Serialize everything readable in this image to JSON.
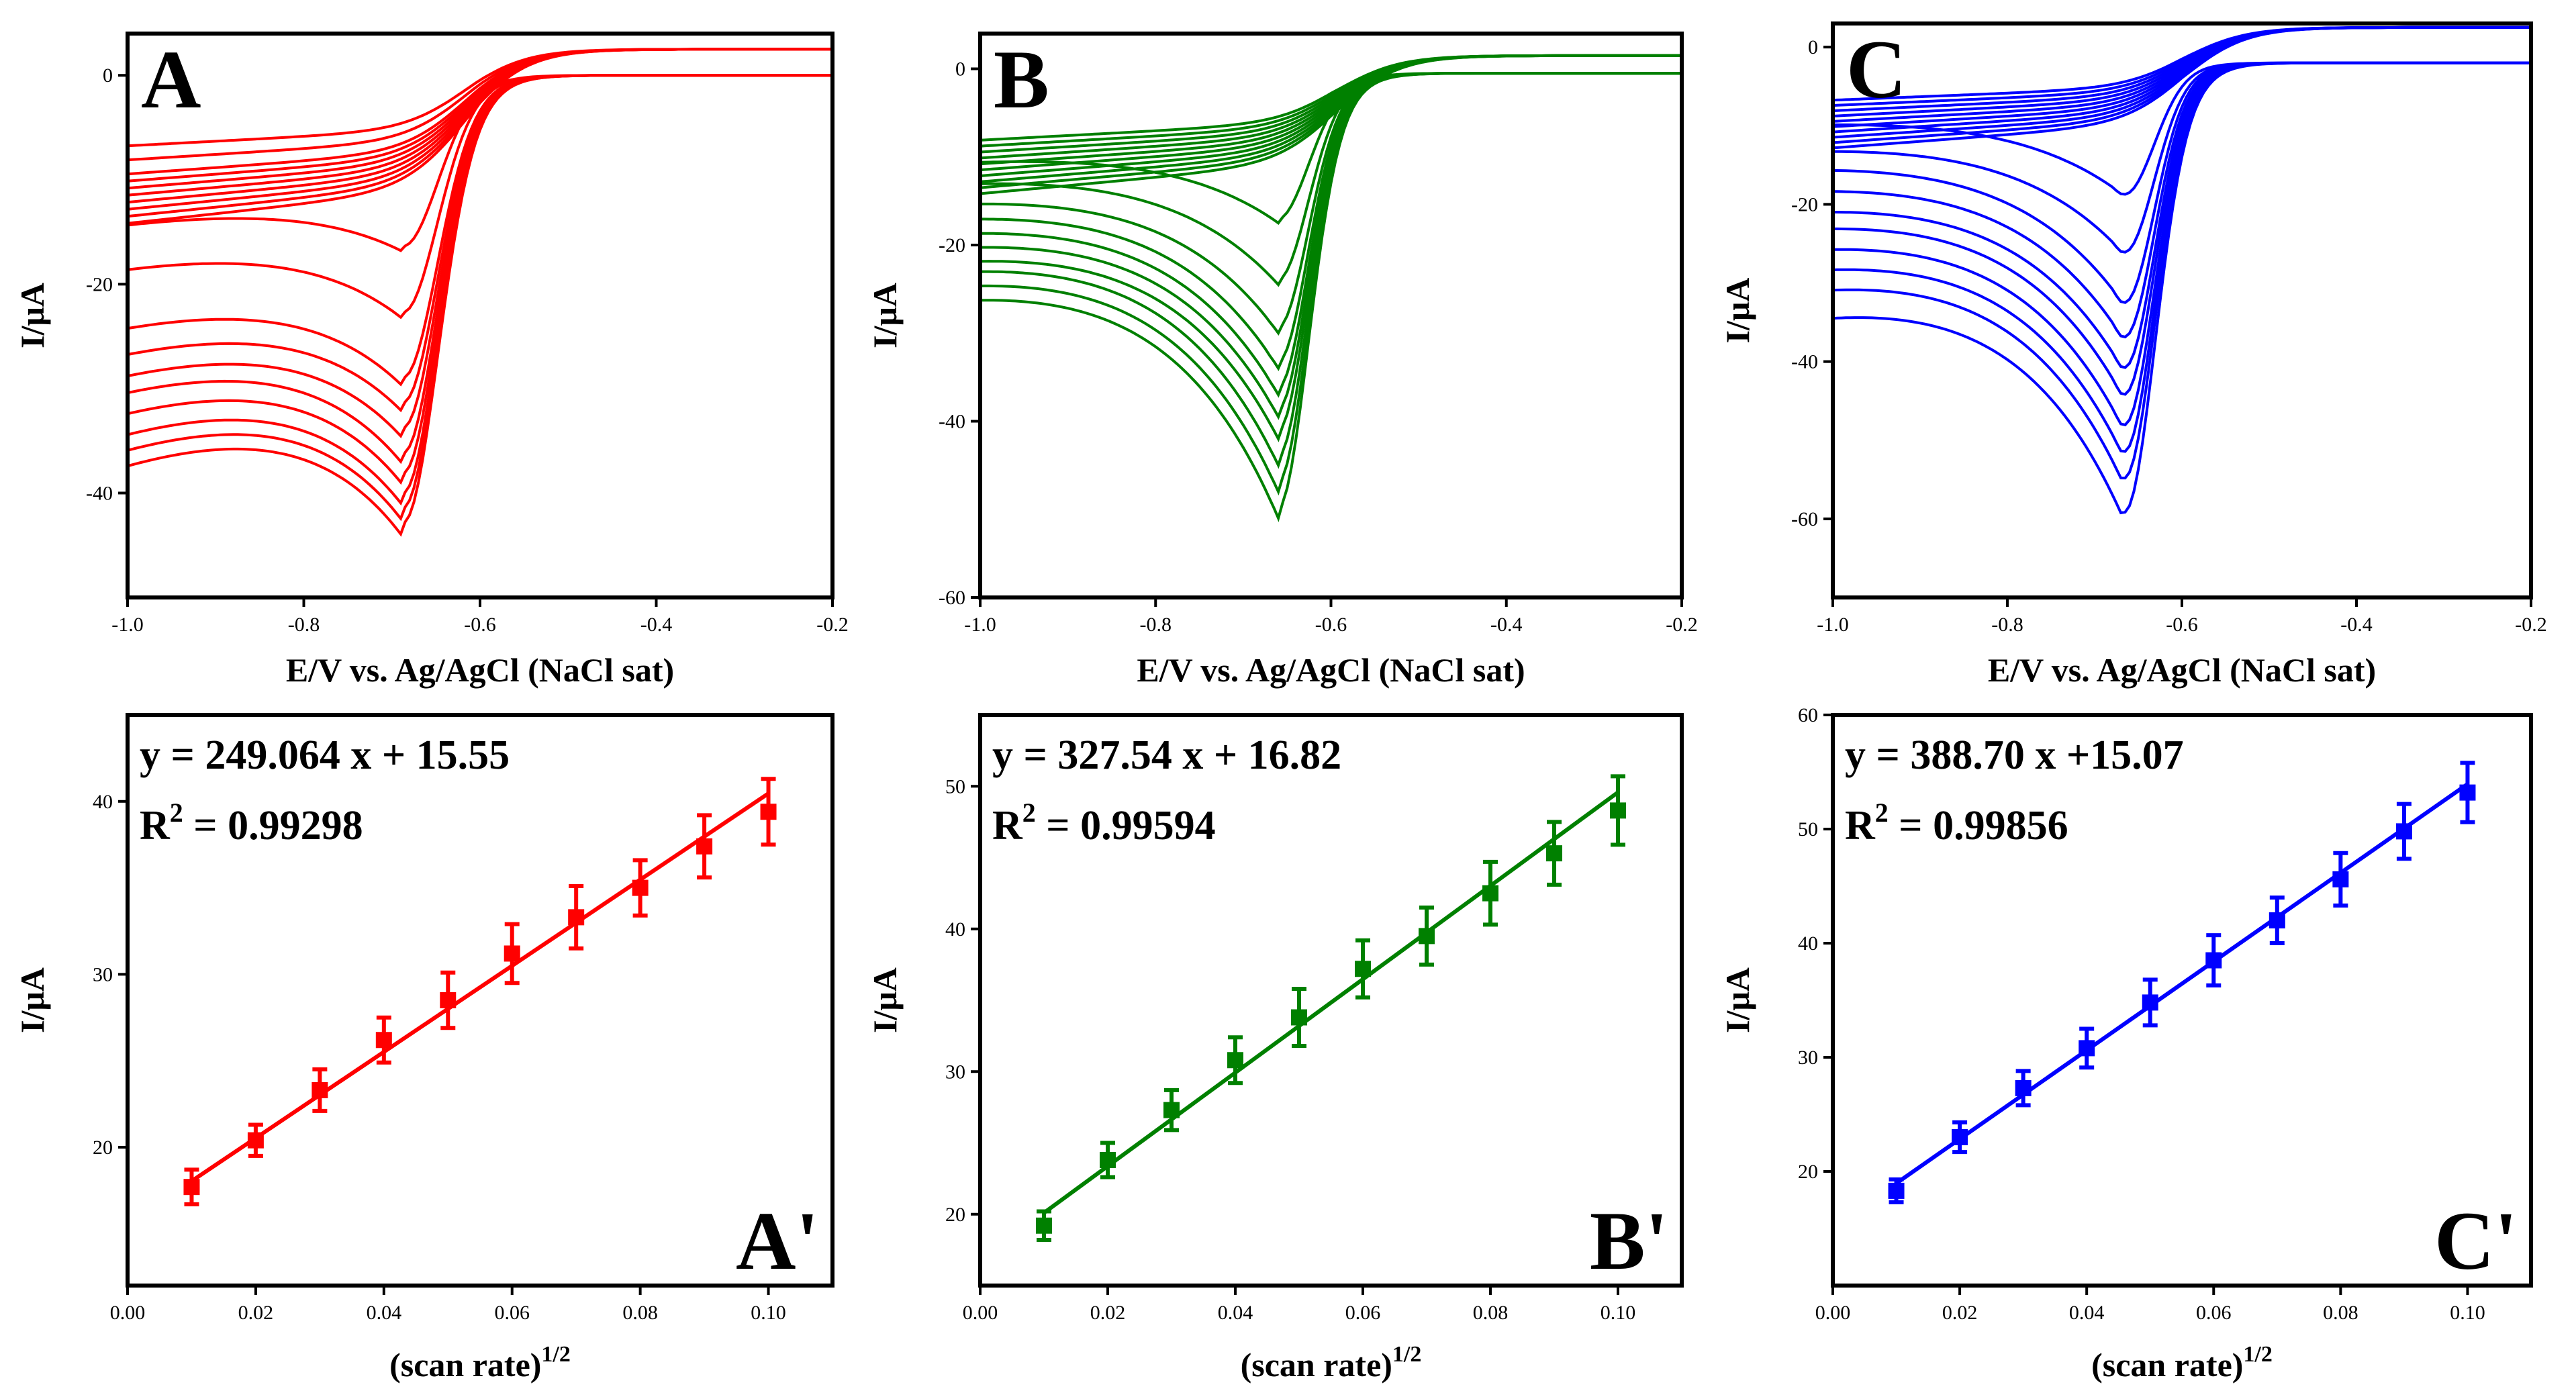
{
  "chart_data": [
    {
      "id": "A",
      "type": "line",
      "panel_label": "A",
      "color": "#ff0000",
      "xlabel": "E/V vs. Ag/AgCl (NaCl sat)",
      "ylabel": "I/μA",
      "xlim": [
        -1.0,
        -0.2
      ],
      "ylim": [
        -50,
        4
      ],
      "xticks": [
        -1.0,
        -0.8,
        -0.6,
        -0.4,
        -0.2
      ],
      "xtick_labels": [
        "-1.0",
        "-0.8",
        "-0.6",
        "-0.4",
        "-0.2"
      ],
      "yticks": [
        0,
        -20,
        -40
      ],
      "ytick_labels": [
        "0",
        "-20",
        "-40"
      ],
      "cv": {
        "n_curves": 10,
        "peak_potential": -0.685,
        "peak_currents": [
          -17,
          -23.5,
          -30,
          -32.5,
          -35,
          -37.5,
          -39.5,
          -41.5,
          -43,
          -44.5
        ],
        "start_currents": [
          -14,
          -18,
          -23.5,
          -26,
          -28,
          -29.5,
          -31.5,
          -33.5,
          -35,
          -36.5
        ],
        "return_currents": [
          -5,
          -6,
          -7,
          -7.5,
          -8,
          -8.5,
          -9,
          -9.5,
          -10,
          -10.5
        ],
        "end_forward": 0.0,
        "end_reverse": 2.5
      }
    },
    {
      "id": "B",
      "type": "line",
      "panel_label": "B",
      "color": "#008000",
      "xlabel": "E/V vs. Ag/AgCl (NaCl sat)",
      "ylabel": "I/μA",
      "xlim": [
        -1.0,
        -0.2
      ],
      "ylim": [
        -60,
        4
      ],
      "xticks": [
        -1.0,
        -0.8,
        -0.6,
        -0.4,
        -0.2
      ],
      "xtick_labels": [
        "-1.0",
        "-0.8",
        "-0.6",
        "-0.4",
        "-0.2"
      ],
      "yticks": [
        0,
        -20,
        -40,
        -60
      ],
      "ytick_labels": [
        "0",
        "-20",
        "-40",
        "-60"
      ],
      "cv": {
        "n_curves": 10,
        "peak_potential": -0.66,
        "peak_currents": [
          -17.5,
          -24.5,
          -30,
          -34,
          -37,
          -39.5,
          -42,
          -45,
          -48,
          -51
        ],
        "start_currents": [
          -10,
          -12,
          -14,
          -15.5,
          -17,
          -18.5,
          -20,
          -21,
          -22.5,
          -24
        ],
        "return_currents": [
          -6,
          -6.5,
          -7,
          -7.5,
          -8,
          -8.5,
          -9,
          -9.5,
          -10,
          -10.5
        ],
        "end_forward": -0.5,
        "end_reverse": 1.5
      }
    },
    {
      "id": "C",
      "type": "line",
      "panel_label": "C",
      "color": "#0000ff",
      "xlabel": "E/V vs. Ag/AgCl (NaCl sat)",
      "ylabel": "I/μA",
      "xlim": [
        -1.0,
        -0.2
      ],
      "ylim": [
        -70,
        3
      ],
      "xticks": [
        -1.0,
        -0.8,
        -0.6,
        -0.4,
        -0.2
      ],
      "xtick_labels": [
        "-1.0",
        "-0.8",
        "-0.6",
        "-0.4",
        "-0.2"
      ],
      "yticks": [
        0,
        -20,
        -40,
        -60
      ],
      "ytick_labels": [
        "0",
        "-20",
        "-40",
        "-60"
      ],
      "cv": {
        "n_curves": 10,
        "peak_potential": -0.665,
        "peak_currents": [
          -19,
          -26.5,
          -33,
          -37.5,
          -41.5,
          -45,
          -49,
          -52.5,
          -56,
          -60.5
        ],
        "start_currents": [
          -9,
          -12,
          -14,
          -16.5,
          -19,
          -21,
          -23.5,
          -26,
          -28.5,
          -32
        ],
        "return_currents": [
          -5,
          -5.5,
          -6,
          -6.5,
          -7,
          -7.5,
          -8,
          -8.5,
          -9,
          -9.5
        ],
        "end_forward": -2.0,
        "end_reverse": 2.5
      }
    },
    {
      "id": "A'",
      "type": "scatter",
      "panel_label": "A'",
      "color": "#ff0000",
      "xlabel": "(scan rate)",
      "xlabel_sup": "1/2",
      "ylabel": "I/μA",
      "xlim": [
        0.0,
        0.11
      ],
      "ylim": [
        12,
        45
      ],
      "xticks": [
        0.0,
        0.02,
        0.04,
        0.06,
        0.08,
        0.1
      ],
      "xtick_labels": [
        "0.00",
        "0.02",
        "0.04",
        "0.06",
        "0.08",
        "0.10"
      ],
      "yticks": [
        20,
        30,
        40
      ],
      "ytick_labels": [
        "20",
        "30",
        "40"
      ],
      "x": [
        0.01,
        0.02,
        0.03,
        0.04,
        0.05,
        0.06,
        0.07,
        0.08,
        0.09,
        0.1
      ],
      "y": [
        17.7,
        20.4,
        23.3,
        26.2,
        28.5,
        31.2,
        33.3,
        35.0,
        37.4,
        39.4
      ],
      "err": [
        1.0,
        0.9,
        1.2,
        1.3,
        1.6,
        1.7,
        1.8,
        1.6,
        1.8,
        1.9
      ],
      "fit": {
        "slope": 249.064,
        "intercept": 15.55
      },
      "equation": "y = 249.064 x + 15.55",
      "r2_prefix": "R",
      "r2_sup": "2",
      "r2_value": " = 0.99298"
    },
    {
      "id": "B'",
      "type": "scatter",
      "panel_label": "B'",
      "color": "#008000",
      "xlabel": "(scan rate)",
      "xlabel_sup": "1/2",
      "ylabel": "I/μA",
      "xlim": [
        0.0,
        0.11
      ],
      "ylim": [
        15,
        55
      ],
      "xticks": [
        0.0,
        0.02,
        0.04,
        0.06,
        0.08,
        0.1
      ],
      "xtick_labels": [
        "0.00",
        "0.02",
        "0.04",
        "0.06",
        "0.08",
        "0.10"
      ],
      "yticks": [
        20,
        30,
        40,
        50
      ],
      "ytick_labels": [
        "20",
        "30",
        "40",
        "50"
      ],
      "x": [
        0.01,
        0.02,
        0.03,
        0.04,
        0.05,
        0.06,
        0.07,
        0.08,
        0.09,
        0.1
      ],
      "y": [
        19.2,
        23.8,
        27.3,
        30.8,
        33.8,
        37.2,
        39.5,
        42.5,
        45.3,
        48.3
      ],
      "err": [
        1.0,
        1.2,
        1.4,
        1.6,
        2.0,
        2.0,
        2.0,
        2.2,
        2.2,
        2.4
      ],
      "fit": {
        "slope": 327.54,
        "intercept": 16.82
      },
      "equation": "y = 327.54 x + 16.82",
      "r2_prefix": "R",
      "r2_sup": "2",
      "r2_value": " = 0.99594"
    },
    {
      "id": "C'",
      "type": "scatter",
      "panel_label": "C'",
      "color": "#0000ff",
      "xlabel": "(scan rate)",
      "xlabel_sup": "1/2",
      "ylabel": "I/μA",
      "xlim": [
        0.0,
        0.11
      ],
      "ylim": [
        10,
        60
      ],
      "xticks": [
        0.0,
        0.02,
        0.04,
        0.06,
        0.08,
        0.1
      ],
      "xtick_labels": [
        "0.00",
        "0.02",
        "0.04",
        "0.06",
        "0.08",
        "0.10"
      ],
      "yticks": [
        20,
        30,
        40,
        50,
        60
      ],
      "ytick_labels": [
        "20",
        "30",
        "40",
        "50",
        "60"
      ],
      "x": [
        0.01,
        0.02,
        0.03,
        0.04,
        0.05,
        0.06,
        0.07,
        0.08,
        0.09,
        0.1
      ],
      "y": [
        18.3,
        23.0,
        27.3,
        30.8,
        34.8,
        38.5,
        42.0,
        45.6,
        49.8,
        53.2
      ],
      "err": [
        1.0,
        1.3,
        1.5,
        1.7,
        2.0,
        2.2,
        2.0,
        2.3,
        2.4,
        2.6
      ],
      "fit": {
        "slope": 388.7,
        "intercept": 15.07
      },
      "equation": "y = 388.70 x +15.07",
      "r2_prefix": "R",
      "r2_sup": "2",
      "r2_value": " = 0.99856"
    }
  ]
}
